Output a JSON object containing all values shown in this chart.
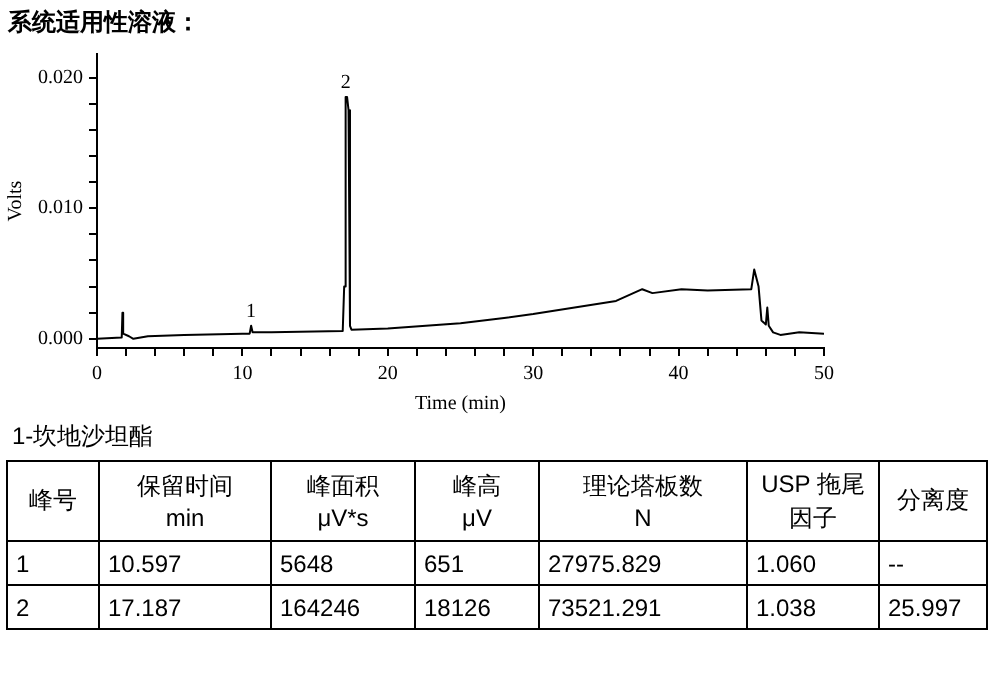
{
  "chart_data": {
    "type": "line",
    "title": "系统适用性溶液：",
    "xlabel": "Time (min)",
    "ylabel": "Volts",
    "x": [
      0,
      1.7,
      1.75,
      1.8,
      2.2,
      2.5,
      3.5,
      6,
      10,
      10.5,
      10.6,
      10.7,
      12,
      16.9,
      17.0,
      17.1,
      17.2,
      17.3,
      17.4,
      17.5,
      20,
      25,
      28,
      30,
      35.7,
      37.5,
      38.2,
      40.2,
      42,
      45,
      45.2,
      45.5,
      45.7,
      46,
      46.1,
      46.2,
      46.5,
      47,
      48.3,
      50
    ],
    "series": [
      {
        "color": "#000000",
        "values": [
          0.0,
          0.0001,
          0.002,
          0.0004,
          0.0002,
          0.0,
          0.0002,
          0.0003,
          0.0004,
          0.0004,
          0.001,
          0.0005,
          0.0005,
          0.0006,
          0.004,
          0.0185,
          0.0185,
          0.0175,
          0.001,
          0.0007,
          0.0008,
          0.0012,
          0.0016,
          0.0019,
          0.0029,
          0.0038,
          0.0035,
          0.0038,
          0.0037,
          0.0038,
          0.0053,
          0.004,
          0.0014,
          0.0011,
          0.0024,
          0.001,
          0.0005,
          0.0003,
          0.0005,
          0.0004
        ]
      }
    ],
    "xlim": [
      0,
      50
    ],
    "xticks": [
      0,
      {
        "value": 2,
        "label": null
      },
      {
        "value": 4,
        "label": null
      },
      {
        "value": 6,
        "label": null
      },
      {
        "value": 8,
        "label": null
      },
      10,
      {
        "value": 12,
        "label": null
      },
      {
        "value": 14,
        "label": null
      },
      {
        "value": 16,
        "label": null
      },
      {
        "value": 18,
        "label": null
      },
      20,
      {
        "value": 22,
        "label": null
      },
      {
        "value": 24,
        "label": null
      },
      {
        "value": 26,
        "label": null
      },
      {
        "value": 28,
        "label": null
      },
      30,
      {
        "value": 32,
        "label": null
      },
      {
        "value": 34,
        "label": null
      },
      {
        "value": 36,
        "label": null
      },
      {
        "value": 38,
        "label": null
      },
      40,
      {
        "value": 42,
        "label": null
      },
      {
        "value": 44,
        "label": null
      },
      {
        "value": 46,
        "label": null
      },
      {
        "value": 48,
        "label": null
      },
      50
    ],
    "ylim": [
      -0.0007,
      0.0218
    ],
    "yticks": [
      {
        "value": 0,
        "label": "0.000"
      },
      {
        "value": 0.002,
        "label": null
      },
      {
        "value": 0.004,
        "label": null
      },
      {
        "value": 0.006,
        "label": null
      },
      {
        "value": 0.008,
        "label": null
      },
      {
        "value": 0.01,
        "label": "0.010"
      },
      {
        "value": 0.012,
        "label": null
      },
      {
        "value": 0.014,
        "label": null
      },
      {
        "value": 0.016,
        "label": null
      },
      {
        "value": 0.018,
        "label": null
      },
      {
        "value": 0.02,
        "label": "0.020"
      }
    ],
    "grid": false,
    "legend": false,
    "marker": "none",
    "line_style": "solid",
    "annotations": [
      {
        "text": "1",
        "x": 10.6,
        "y": 0.001
      },
      {
        "text": "2",
        "x": 17.1,
        "y": 0.0185
      },
      "1-坎地沙坦酯",
      "峰号",
      "保留时间\nmin",
      "峰面积\nμV*s",
      "峰高\nμV",
      "理论塔板数\nN",
      "USP 拖尾因子",
      "分离度",
      "1",
      "10.597",
      "5648",
      "651",
      "27975.829",
      "1.060",
      "--",
      "2",
      "17.187",
      "164246",
      "18126",
      "73521.291",
      "1.038",
      "25.997"
    ]
  }
}
